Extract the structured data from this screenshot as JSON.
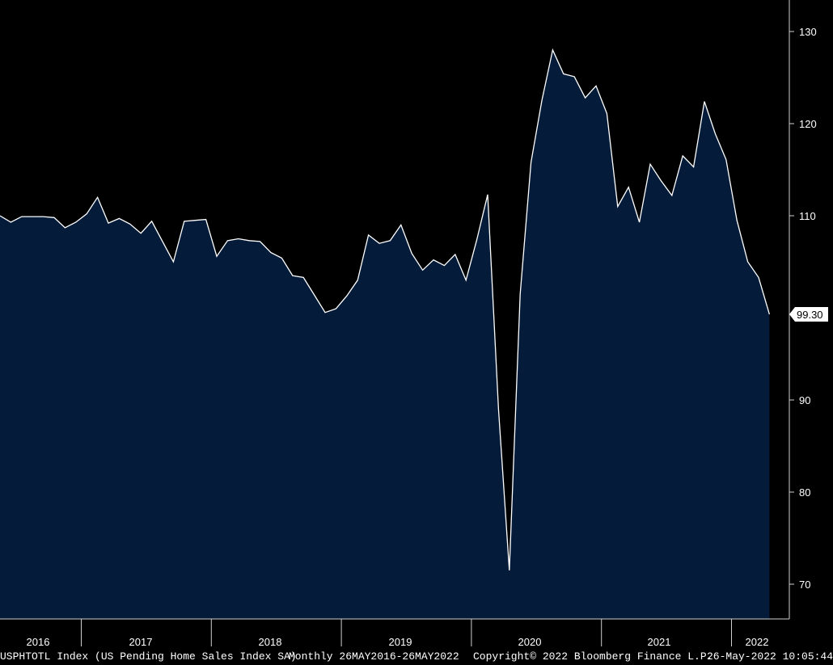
{
  "chart_data": {
    "type": "area",
    "x_labels": [
      "2016",
      "2017",
      "2018",
      "2019",
      "2020",
      "2021",
      "2022"
    ],
    "x_start": "2016-05",
    "frequency": "monthly",
    "values": [
      110.0,
      109.3,
      109.9,
      109.9,
      109.9,
      109.8,
      108.7,
      109.3,
      110.2,
      112.0,
      109.2,
      109.7,
      109.1,
      108.1,
      109.4,
      107.2,
      105.0,
      109.4,
      109.5,
      109.6,
      105.6,
      107.3,
      107.5,
      107.3,
      107.2,
      106.0,
      105.4,
      103.5,
      103.3,
      101.4,
      99.5,
      99.9,
      101.3,
      103.0,
      107.9,
      107.0,
      107.3,
      109.0,
      105.9,
      104.1,
      105.2,
      104.6,
      105.8,
      103.0,
      107.4,
      112.3,
      89.0,
      71.5,
      101.5,
      115.8,
      122.5,
      128.0,
      125.4,
      125.1,
      122.8,
      124.1,
      121.1,
      111.0,
      113.1,
      109.3,
      115.6,
      113.8,
      112.2,
      116.5,
      115.3,
      122.4,
      118.9,
      116.1,
      109.5,
      105.0,
      103.3,
      99.3
    ],
    "y_ticks": [
      "70",
      "80",
      "90",
      "110",
      "120",
      "130"
    ],
    "ylim": [
      65,
      132
    ],
    "last_value_label": "99.30",
    "fill_color": "#041c3a",
    "line_color": "#ffffff",
    "grid": false,
    "legend": "none"
  },
  "footer": {
    "ticker": "USPHTOTL Index (US Pending Home Sales Index SA)",
    "range": "Monthly 26MAY2016-26MAY2022",
    "copyright": "Copyright© 2022 Bloomberg Finance L.P.",
    "timestamp": "26-May-2022 10:05:44"
  }
}
